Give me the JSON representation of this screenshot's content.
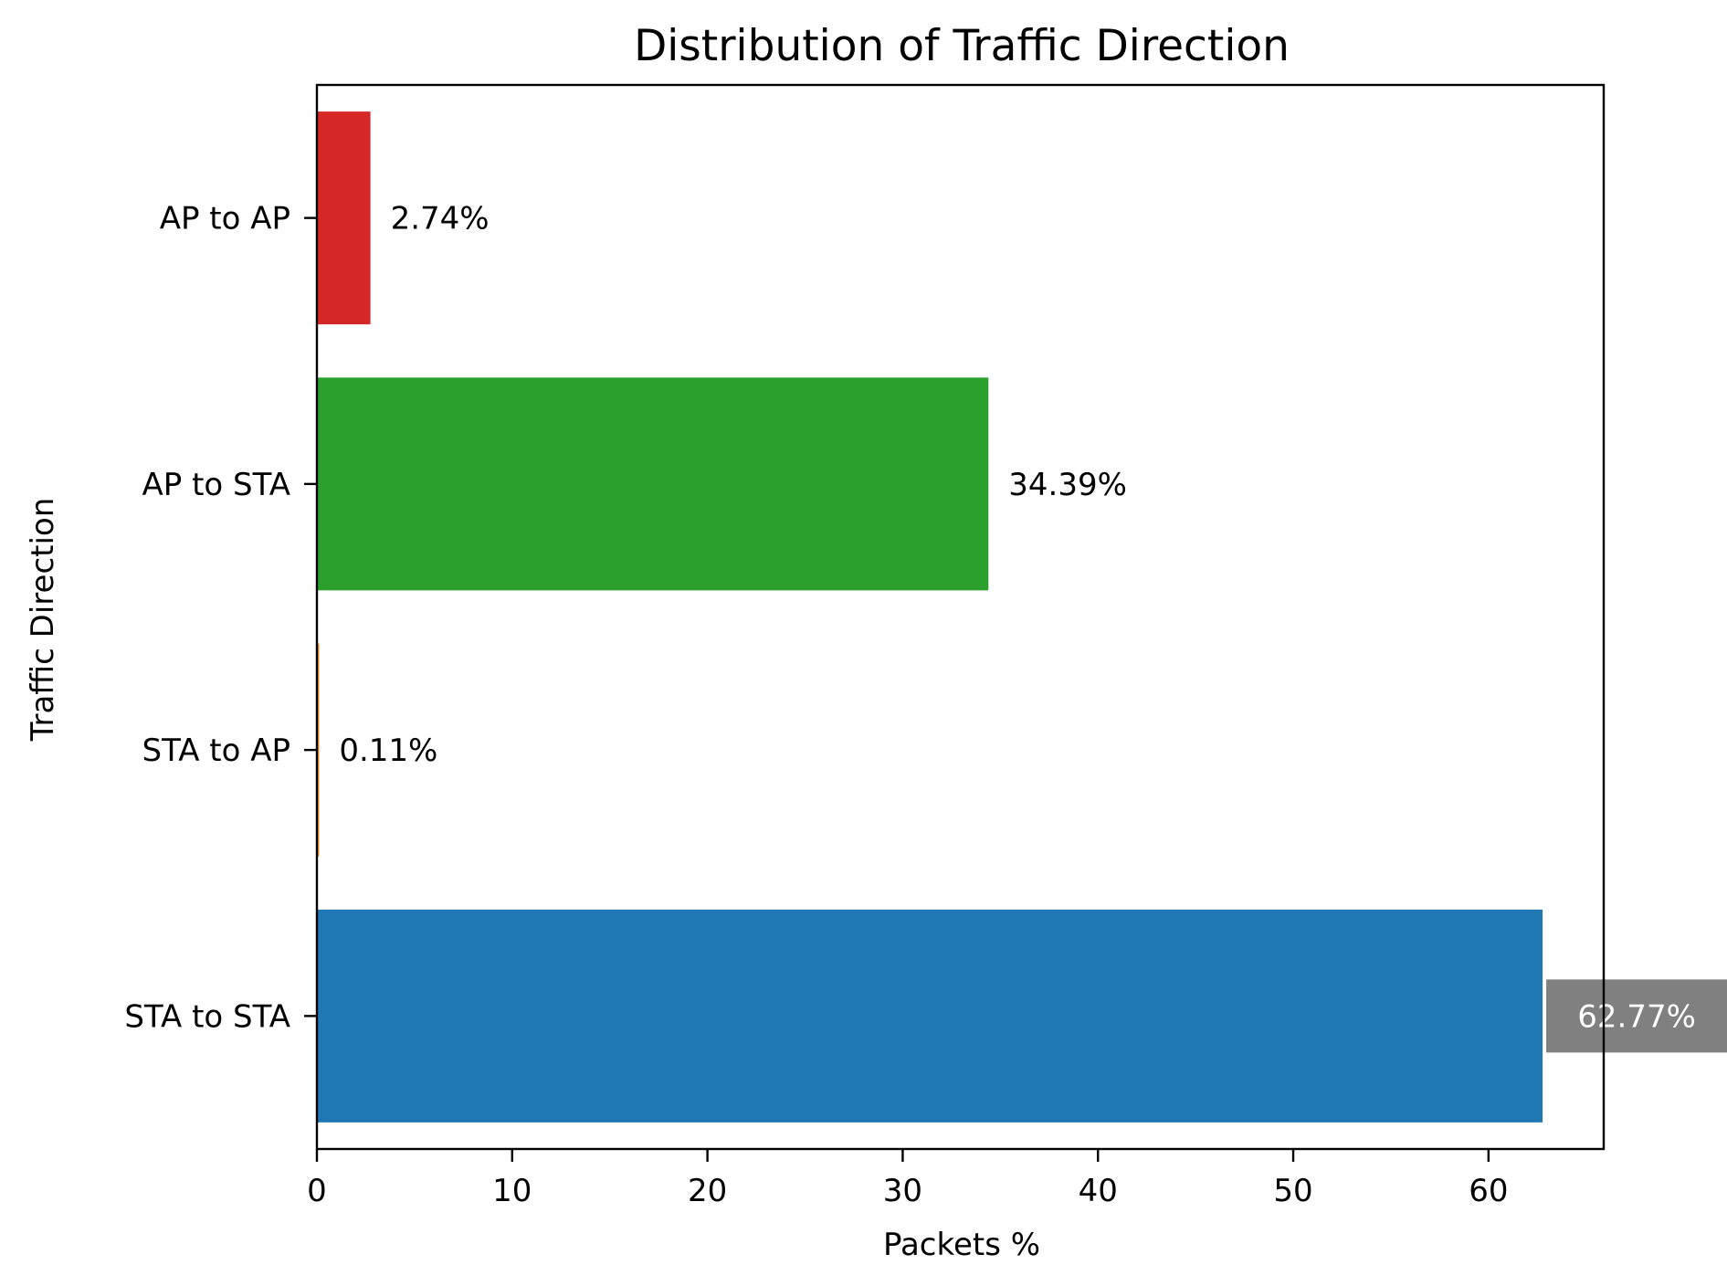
{
  "chart_data": {
    "type": "bar",
    "orientation": "horizontal",
    "title": "Distribution of Traffic Direction",
    "xlabel": "Packets %",
    "ylabel": "Traffic Direction",
    "xlim": [
      0,
      65.9
    ],
    "xticks": [
      0,
      10,
      20,
      30,
      40,
      50,
      60
    ],
    "grid": false,
    "legend": "none",
    "categories": [
      "STA to STA",
      "STA to AP",
      "AP to STA",
      "AP to AP"
    ],
    "values": [
      62.77,
      0.11,
      34.39,
      2.74
    ],
    "value_labels": [
      "62.77%",
      "0.11%",
      "34.39%",
      "2.74%"
    ],
    "colors": [
      "#1f77b4",
      "#ff7f0e",
      "#2ca02c",
      "#d62728"
    ],
    "highlighted_label": "62.77%",
    "highlight_box_color": "#808080"
  }
}
